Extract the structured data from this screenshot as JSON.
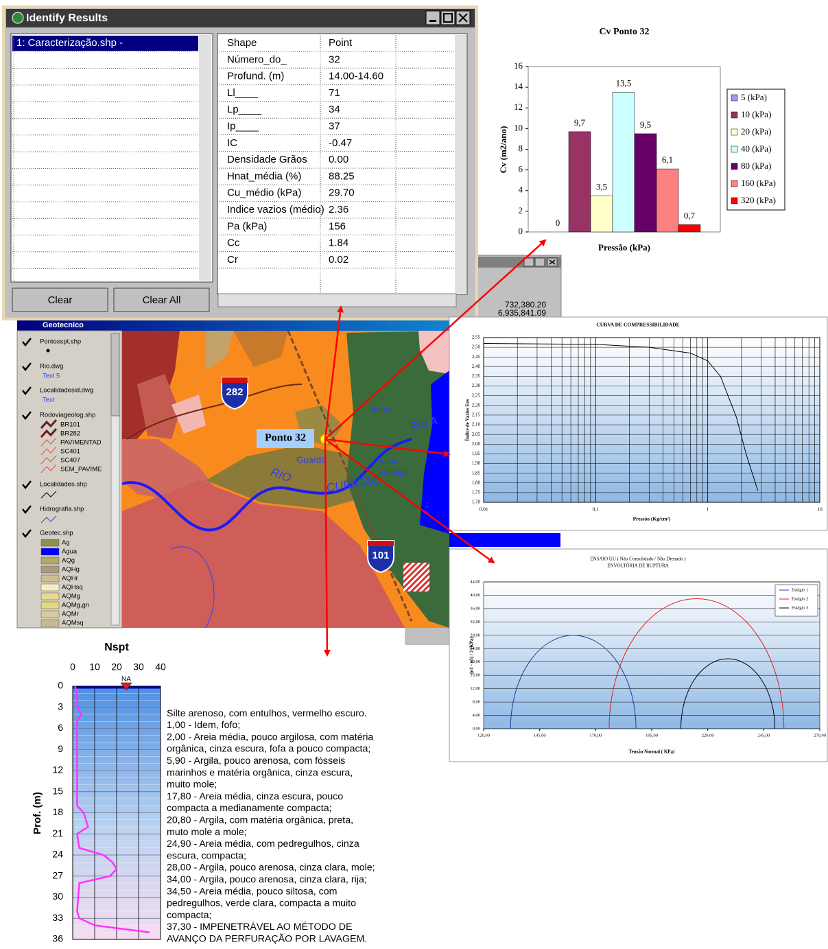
{
  "identify": {
    "title": "Identify Results",
    "layer": "1: Caracterização.shp -",
    "rows": [
      [
        "Shape",
        "Point"
      ],
      [
        "Número_do_",
        "32"
      ],
      [
        "Profund. (m)",
        "14.00-14.60"
      ],
      [
        "Ll____",
        "71"
      ],
      [
        "Lp____",
        "34"
      ],
      [
        "Ip____",
        "37"
      ],
      [
        "IC",
        "-0.47"
      ],
      [
        "Densidade Grãos",
        "0.00"
      ],
      [
        "Hnat_média (%)",
        "88.25"
      ],
      [
        "Cu_médio (kPa)",
        "29.70"
      ],
      [
        "Indice vazios (médio)",
        "2.36"
      ],
      [
        "Pa (kPa)",
        "156"
      ],
      [
        "Cc",
        "1.84"
      ],
      [
        "Cr",
        "0.02"
      ]
    ],
    "buttons": [
      "Clear",
      "Clear All"
    ]
  },
  "back_window": {
    "coords": [
      "732,380.20",
      "6,935,841.09"
    ]
  },
  "map": {
    "title": "Geotecnico",
    "legend": [
      {
        "name": "Pontosspt.shp",
        "items": []
      },
      {
        "name": "Rio.dwg",
        "items": [
          "Text 5"
        ]
      },
      {
        "name": "Localidadesid.dwg",
        "items": [
          "Text"
        ]
      },
      {
        "name": "Rodoviageolog.shp",
        "items": [
          "BR101",
          "BR282",
          "PAVIMENTAD",
          "SC401",
          "SC407",
          "SEM_PAVIME"
        ]
      },
      {
        "name": "Localidades.shp",
        "items": []
      },
      {
        "name": "Hidrografia.shp",
        "items": []
      },
      {
        "name": "Geotec.shp",
        "items": [
          "Ag",
          "Água",
          "AQg",
          "AQHg",
          "AQHr",
          "AQHsq",
          "AQMg",
          "AQMg,gn",
          "AQMr",
          "AQMsq"
        ],
        "colors": [
          "#8f8f50",
          "#0000ff",
          "#b4a86a",
          "#a89c7c",
          "#cdbf8f",
          "#f3efc4",
          "#e8dc8c",
          "#e4d880",
          "#d8cc9c",
          "#c8bc8c"
        ]
      }
    ],
    "labels": [
      "282",
      "101",
      "Ponto 32",
      "Anriu",
      "Rio A",
      "Guarda",
      "RIO",
      "CUBATAO",
      "Anriu",
      "Formiga"
    ]
  },
  "chart_data": [
    {
      "type": "bar",
      "title": "Cv Ponto 32",
      "y_label": "Cv (m2/ano)",
      "x_label": "Pressão (kPa)",
      "ylim": [
        0,
        16
      ],
      "yticks": [
        0,
        2,
        4,
        6,
        8,
        10,
        12,
        14,
        16
      ],
      "series": [
        {
          "name": "5 (kPa)",
          "color": "#9999ff",
          "values": [
            0
          ],
          "value_labels": [
            "0"
          ]
        },
        {
          "name": "10 (kPa)",
          "color": "#993366",
          "values": [
            9.7
          ],
          "value_labels": [
            "9,7"
          ]
        },
        {
          "name": "20 (kPa)",
          "color": "#ffffcc",
          "values": [
            3.5
          ],
          "value_labels": [
            "3,5"
          ]
        },
        {
          "name": "40 (kPa)",
          "color": "#ccffff",
          "values": [
            13.5
          ],
          "value_labels": [
            "13,5"
          ]
        },
        {
          "name": "80 (kPa)",
          "color": "#660066",
          "values": [
            9.5
          ],
          "value_labels": [
            "9,5"
          ]
        },
        {
          "name": "160 (kPa)",
          "color": "#ff8080",
          "values": [
            6.1
          ],
          "value_labels": [
            "6,1"
          ]
        },
        {
          "name": "320 (kPa)",
          "color": "#ff0000",
          "values": [
            0.7
          ],
          "value_labels": [
            "0,7"
          ]
        }
      ]
    },
    {
      "type": "line",
      "title": "CURVA DE COMPRESSIBILIDADE",
      "x_label": "Pressão (Kg/cm²)",
      "y_label": "Índice de Vazios  Ens",
      "x_log": true,
      "xlim": [
        0.01,
        10
      ],
      "xticks": [
        {
          "value": 0.01,
          "label": "0,01"
        },
        {
          "value": 0.1,
          "label": "0,1"
        },
        1,
        10
      ],
      "ylim": [
        1.7,
        2.55
      ],
      "yticks": [
        {
          "value": 1.7,
          "label": "1,70"
        },
        {
          "value": 1.75,
          "label": "1,75"
        },
        {
          "value": 1.8,
          "label": "1,80"
        },
        {
          "value": 1.85,
          "label": "1,85"
        },
        {
          "value": 1.9,
          "label": "1,90"
        },
        {
          "value": 1.95,
          "label": "1,95"
        },
        {
          "value": 2.0,
          "label": "2,00"
        },
        {
          "value": 2.05,
          "label": "2,05"
        },
        {
          "value": 2.1,
          "label": "2,10"
        },
        {
          "value": 2.15,
          "label": "2,15"
        },
        {
          "value": 2.2,
          "label": "2,20"
        },
        {
          "value": 2.25,
          "label": "2,25"
        },
        {
          "value": 2.3,
          "label": "2,30"
        },
        {
          "value": 2.35,
          "label": "2,35"
        },
        {
          "value": 2.4,
          "label": "2,40"
        },
        {
          "value": 2.45,
          "label": "2,45"
        },
        {
          "value": 2.5,
          "label": "2,50"
        },
        {
          "value": 2.55,
          "label": "2,55"
        }
      ],
      "color": "#000000",
      "x": [
        0.01,
        0.1,
        0.3,
        0.7,
        1.0,
        1.3,
        1.8,
        2.2,
        2.8
      ],
      "values": [
        2.52,
        2.515,
        2.5,
        2.47,
        2.43,
        2.35,
        2.14,
        1.95,
        1.76
      ]
    },
    {
      "type": "mohr",
      "title": "ENSAIO UU ( Não Consolidado / Não Drenado )",
      "subtitle": "ENVOLTÓRIA DE RUPTURA",
      "x_label": "Tensão Normal ( KPa)",
      "y_label": "(σ1 - σ3) / 2 (KPa)",
      "xlim": [
        120,
        270
      ],
      "xticks": [
        {
          "value": 120,
          "label": "120,00"
        },
        {
          "value": 145,
          "label": "145,00"
        },
        {
          "value": 170,
          "label": "170,00"
        },
        {
          "value": 195,
          "label": "195,00"
        },
        {
          "value": 220,
          "label": "220,00"
        },
        {
          "value": 245,
          "label": "245,00"
        },
        {
          "value": 270,
          "label": "270,00"
        }
      ],
      "ylim": [
        0,
        44
      ],
      "yticks": [
        {
          "value": 0,
          "label": "0,00"
        },
        {
          "value": 4,
          "label": "4,00"
        },
        {
          "value": 8,
          "label": "8,00"
        },
        {
          "value": 12,
          "label": "12,00"
        },
        {
          "value": 16,
          "label": "16,00"
        },
        {
          "value": 20,
          "label": "20,00"
        },
        {
          "value": 24,
          "label": "24,00"
        },
        {
          "value": 28,
          "label": "28,00"
        },
        {
          "value": 32,
          "label": "32,00"
        },
        {
          "value": 36,
          "label": "36,00"
        },
        {
          "value": 40,
          "label": "40,00"
        },
        {
          "value": 44,
          "label": "44,00"
        }
      ],
      "legend": "upper right",
      "series": [
        {
          "name": "Estágio 1",
          "color": "#1f3d99",
          "center": 160,
          "radius": 28
        },
        {
          "name": "Estágio 2",
          "color": "#e02020",
          "center": 215,
          "radius": 39
        },
        {
          "name": "Estágio 3",
          "color": "#000000",
          "center": 229,
          "radius": 21
        }
      ]
    },
    {
      "type": "profile",
      "title": "Nspt",
      "y_label": "Prof. (m)",
      "annotation": "NA",
      "color": "#ff33ff",
      "xlim": [
        0,
        40
      ],
      "xticks": [
        0,
        10,
        20,
        30,
        40
      ],
      "ylim": [
        0,
        36
      ],
      "yticks": [
        0,
        3,
        6,
        9,
        12,
        15,
        18,
        21,
        24,
        27,
        30,
        33,
        36
      ],
      "depth": [
        0,
        1,
        3,
        4,
        5,
        17,
        18,
        20,
        21,
        23,
        24,
        25,
        26,
        27,
        28,
        32,
        33,
        34,
        35
      ],
      "values": [
        1,
        2,
        2,
        4,
        2,
        2,
        5,
        7,
        2,
        3,
        14,
        18,
        20,
        17,
        3,
        2,
        3,
        10,
        35
      ],
      "soil_log": [
        "Silte arenoso, com entulhos, vermelho escuro.",
        "1,00 - Idem, fofo;",
        "2,00 - Areia média, pouco argilosa, com matéria",
        "orgânica, cinza escura, fofa a pouco compacta;",
        "5,90 - Argila, pouco arenosa, com fósseis",
        "marinhos e matéria orgânica, cinza escura,",
        "muito mole;",
        "17,80 - Areia média, cinza escura, pouco",
        "compacta a medianamente compacta;",
        "20,80 - Argila, com matéria orgânica, preta,",
        "muto mole a mole;",
        "24,90 - Areia média, com pedregulhos, cinza",
        "escura, compacta;",
        "28,00 - Argila, pouco arenosa, cinza clara, mole;",
        "34,00 - Argila, pouco arenosa, cinza clara, rija;",
        "34,50 - Areia média, pouco siltosa, com",
        "pedregulhos, verde clara, compacta a muito",
        "compacta;",
        "37,30 - IMPENETRÁVEL AO MÉTODO DE",
        "AVANÇO DA PERFURAÇÃO POR LAVAGEM."
      ]
    }
  ]
}
